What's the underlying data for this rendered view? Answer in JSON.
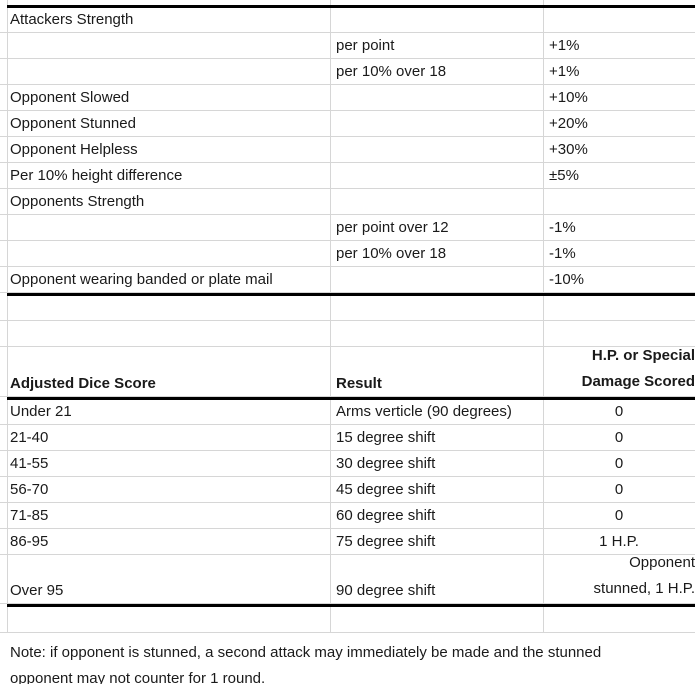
{
  "colors": {
    "background": "#ffffff",
    "gridline": "#d6d6d6",
    "heavy_border": "#000000",
    "text": "#1a1a1a"
  },
  "modifiers_table": {
    "rows": [
      {
        "label": "Attackers Strength",
        "detail": "",
        "value": ""
      },
      {
        "label": "",
        "detail": "per point",
        "value": "+1%"
      },
      {
        "label": "",
        "detail": "per 10% over 18",
        "value": "+1%"
      },
      {
        "label": "Opponent Slowed",
        "detail": "",
        "value": "+10%"
      },
      {
        "label": "Opponent Stunned",
        "detail": "",
        "value": "+20%"
      },
      {
        "label": "Opponent Helpless",
        "detail": "",
        "value": "+30%"
      },
      {
        "label": "Per 10% height difference",
        "detail": "",
        "value": "±5%"
      },
      {
        "label": "Opponents Strength",
        "detail": "",
        "value": ""
      },
      {
        "label": "",
        "detail": "per point over 12",
        "value": "-1%"
      },
      {
        "label": "",
        "detail": "per 10% over 18",
        "value": "-1%"
      },
      {
        "label": "Opponent wearing banded or plate mail",
        "detail": "",
        "value": "-10%"
      }
    ]
  },
  "dice_table": {
    "header": {
      "score": "Adjusted Dice Score",
      "result": "Result",
      "damage_line1": "H.P. or Special",
      "damage_line2": "Damage Scored"
    },
    "rows": [
      {
        "score": "Under 21",
        "result": "Arms verticle (90 degrees)",
        "damage": "0"
      },
      {
        "score": "21-40",
        "result": "15 degree shift",
        "damage": "0"
      },
      {
        "score": "41-55",
        "result": "30 degree shift",
        "damage": "0"
      },
      {
        "score": "56-70",
        "result": "45 degree shift",
        "damage": "0"
      },
      {
        "score": "71-85",
        "result": "60 degree shift",
        "damage": "0"
      },
      {
        "score": "86-95",
        "result": "75 degree shift",
        "damage": "1 H.P."
      },
      {
        "score": "Over 95",
        "result": "90 degree shift",
        "damage_line1": "Opponent",
        "damage_line2": "stunned, 1 H.P."
      }
    ]
  },
  "note": {
    "line1": "Note: if opponent is stunned, a second attack may immediately be made and the stunned",
    "line2": "opponent may not counter for 1 round."
  }
}
